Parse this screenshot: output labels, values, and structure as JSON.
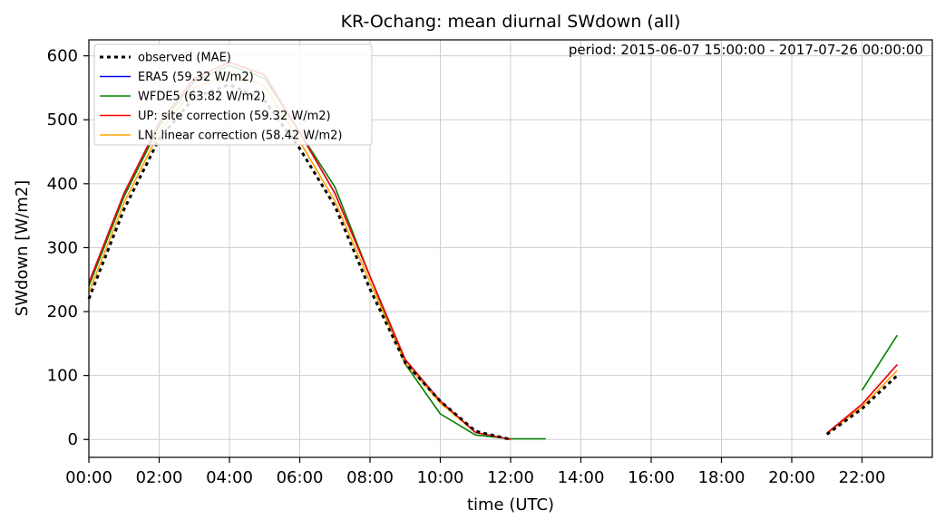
{
  "chart_data": {
    "type": "line",
    "title": "KR-Ochang: mean diurnal SWdown (all)",
    "xlabel": "time (UTC)",
    "ylabel": "SWdown [W/m2]",
    "annotation": "period: 2015-06-07 15:00:00 - 2017-07-26 00:00:00",
    "xlim": [
      0,
      24
    ],
    "ylim": [
      -28,
      625
    ],
    "x_ticks": [
      0,
      2,
      4,
      6,
      8,
      10,
      12,
      14,
      16,
      18,
      20,
      22
    ],
    "x_tick_labels": [
      "00:00",
      "02:00",
      "04:00",
      "06:00",
      "08:00",
      "10:00",
      "12:00",
      "14:00",
      "16:00",
      "18:00",
      "20:00",
      "22:00"
    ],
    "y_ticks": [
      0,
      100,
      200,
      300,
      400,
      500,
      600
    ],
    "y_tick_labels": [
      "0",
      "100",
      "200",
      "300",
      "400",
      "500",
      "600"
    ],
    "grid": true,
    "legend_position": "top-left",
    "x": [
      0,
      1,
      2,
      3,
      4,
      5,
      6,
      7,
      8,
      9,
      10,
      11,
      12,
      13,
      14,
      15,
      16,
      17,
      18,
      19,
      20,
      21,
      22,
      23
    ],
    "series": [
      {
        "name": "observed (MAE)",
        "color": "#000000",
        "dash": "4,4",
        "width": 3,
        "values": [
          220,
          360,
          470,
          535,
          555,
          530,
          455,
          365,
          235,
          120,
          60,
          13,
          0,
          null,
          null,
          null,
          null,
          null,
          null,
          null,
          null,
          8,
          48,
          100
        ]
      },
      {
        "name": "ERA5 (59.32 W/m2)",
        "color": "#0000ff",
        "dash": "",
        "width": 1.6,
        "values": [
          245,
          385,
          495,
          565,
          590,
          570,
          480,
          385,
          255,
          125,
          60,
          11,
          0,
          null,
          null,
          null,
          null,
          null,
          null,
          null,
          null,
          10,
          55,
          117
        ]
      },
      {
        "name": "WFDE5 (63.82 W/m2)",
        "color": "#008000",
        "dash": "",
        "width": 1.6,
        "values": [
          240,
          380,
          490,
          560,
          585,
          565,
          480,
          395,
          255,
          118,
          40,
          7,
          1,
          1,
          null,
          null,
          null,
          null,
          null,
          null,
          null,
          null,
          77,
          163
        ]
      },
      {
        "name": "UP: site correction (59.32 W/m2)",
        "color": "#ff0000",
        "dash": "",
        "width": 1.6,
        "values": [
          245,
          385,
          495,
          565,
          590,
          570,
          480,
          385,
          255,
          125,
          60,
          11,
          0,
          null,
          null,
          null,
          null,
          null,
          null,
          null,
          null,
          10,
          55,
          117
        ]
      },
      {
        "name": "LN: linear correction (58.42 W/m2)",
        "color": "#ffa500",
        "dash": "",
        "width": 1.6,
        "values": [
          230,
          370,
          480,
          550,
          572,
          553,
          466,
          373,
          246,
          120,
          57,
          11,
          0,
          null,
          null,
          null,
          null,
          null,
          null,
          null,
          null,
          9,
          51,
          108
        ]
      }
    ]
  }
}
